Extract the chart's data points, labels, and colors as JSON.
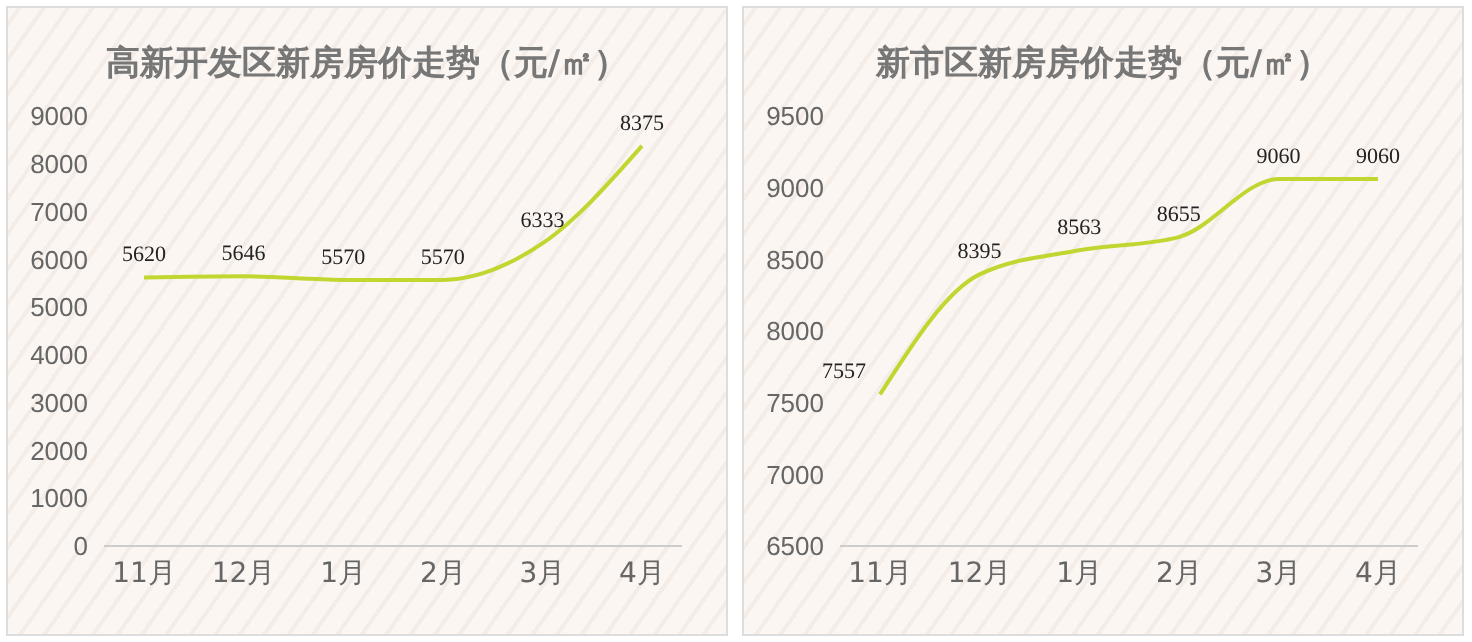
{
  "chart_data": [
    {
      "type": "line",
      "title": "高新开发区新房房价走势（元/㎡）",
      "categories": [
        "11月",
        "12月",
        "1月",
        "2月",
        "3月",
        "4月"
      ],
      "series": [
        {
          "color": "#c2d631",
          "values": [
            5620,
            5646,
            5570,
            5570,
            6333,
            8375
          ]
        }
      ],
      "ylim": [
        0,
        9000
      ],
      "yticks": [
        0,
        1000,
        2000,
        3000,
        4000,
        5000,
        6000,
        7000,
        8000,
        9000
      ],
      "grid": false,
      "legend": false,
      "data_labels": true,
      "marker": "none"
    },
    {
      "type": "line",
      "title": "新市区新房房价走势（元/㎡）",
      "categories": [
        "11月",
        "12月",
        "1月",
        "2月",
        "3月",
        "4月"
      ],
      "series": [
        {
          "color": "#c2d631",
          "values": [
            7557,
            8395,
            8563,
            8655,
            9060,
            9060
          ]
        }
      ],
      "ylim": [
        6500,
        9500
      ],
      "yticks": [
        6500,
        7000,
        7500,
        8000,
        8500,
        9000,
        9500
      ],
      "grid": false,
      "legend": false,
      "data_labels": true,
      "marker": "none"
    }
  ]
}
